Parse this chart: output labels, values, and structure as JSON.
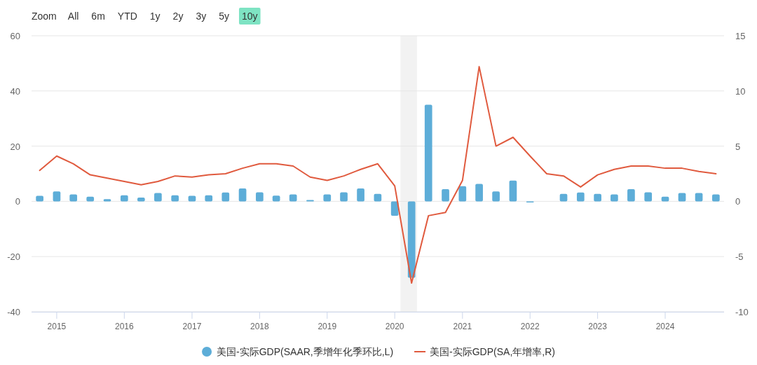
{
  "chart_data": {
    "type": "bar",
    "x": [
      "2014-10",
      "2015-01",
      "2015-04",
      "2015-07",
      "2015-10",
      "2016-01",
      "2016-04",
      "2016-07",
      "2016-10",
      "2017-01",
      "2017-04",
      "2017-07",
      "2017-10",
      "2018-01",
      "2018-04",
      "2018-07",
      "2018-10",
      "2019-01",
      "2019-04",
      "2019-07",
      "2019-10",
      "2020-01",
      "2020-04",
      "2020-07",
      "2020-10",
      "2021-01",
      "2021-04",
      "2021-07",
      "2021-10",
      "2022-01",
      "2022-04",
      "2022-07",
      "2022-10",
      "2023-01",
      "2023-04",
      "2023-07",
      "2023-10",
      "2024-01",
      "2024-04",
      "2024-07",
      "2024-10"
    ],
    "series": [
      {
        "name": "美国-实际GDP(SAAR,季增年化季环比,L)",
        "color": "#5dadd8",
        "values": [
          2.0,
          3.6,
          2.5,
          1.7,
          0.8,
          2.2,
          1.4,
          3.0,
          2.2,
          2.0,
          2.2,
          3.2,
          4.7,
          3.3,
          2.1,
          2.5,
          0.5,
          2.5,
          3.3,
          4.7,
          2.7,
          -5.2,
          -27.7,
          35.0,
          4.4,
          5.5,
          6.3,
          3.6,
          7.5,
          -0.4,
          0,
          2.7,
          3.2,
          2.7,
          2.5,
          4.4,
          3.3,
          1.7,
          3.0,
          3.0,
          2.5
        ]
      },
      {
        "name": "美国-实际GDP(SA,年增率,R)",
        "type": "line",
        "axis": "y2",
        "color": "#e05a3e",
        "values": [
          2.8,
          4.1,
          3.4,
          2.4,
          2.1,
          1.8,
          1.5,
          1.8,
          2.3,
          2.2,
          2.4,
          2.5,
          3.0,
          3.4,
          3.4,
          3.2,
          2.2,
          1.9,
          2.3,
          2.9,
          3.4,
          1.4,
          -7.4,
          -1.3,
          -1.0,
          1.9,
          12.2,
          5.0,
          5.8,
          4.1,
          2.5,
          2.3,
          1.3,
          2.4,
          2.9,
          3.2,
          3.2,
          3.0,
          3.0,
          2.7,
          2.5
        ]
      }
    ],
    "xlim": [
      "2014-08-18",
      "2024-11-14"
    ],
    "xticks": [
      "2015",
      "2016",
      "2017",
      "2018",
      "2019",
      "2020",
      "2021",
      "2022",
      "2023",
      "2024"
    ],
    "ylim": [
      -40,
      60
    ],
    "yticks": [
      -40,
      -20,
      0,
      20,
      40,
      60
    ],
    "y2lim": [
      -10,
      15
    ],
    "y2ticks": [
      -10,
      -5,
      0,
      5,
      10,
      15
    ],
    "bands": [
      {
        "axis": "x",
        "from": "2020-02-01",
        "to": "2020-04-30",
        "color": "#f2f2f2"
      }
    ],
    "grid": "y",
    "legend": "bottom",
    "annotations": [
      "Zoom",
      "All",
      "6m",
      "YTD",
      "1y",
      "2y",
      "3y",
      "5y",
      "10y"
    ]
  }
}
